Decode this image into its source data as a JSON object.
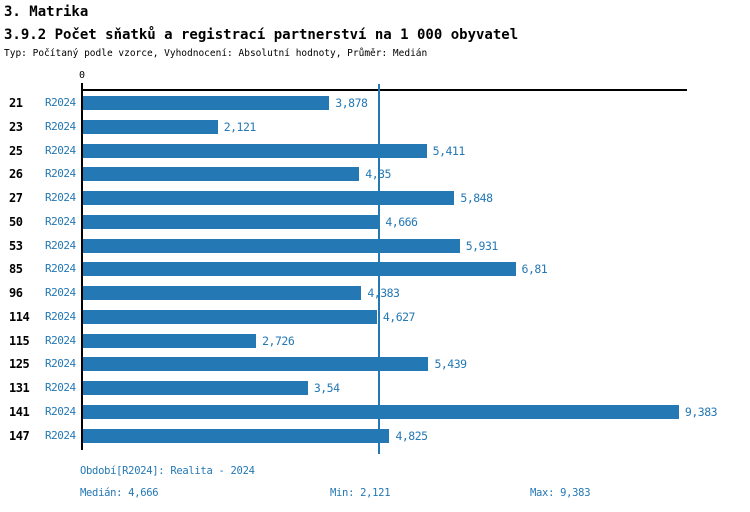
{
  "header": {
    "section": "3. Matrika",
    "title": "3.9.2 Počet sňatků a registrací partnerství na 1 000 obyvatel",
    "subtitle": "Typ: Počítaný podle vzorce, Vyhodnocení: Absolutní hodnoty, Průměr: Medián"
  },
  "chart_data": {
    "type": "bar",
    "orientation": "horizontal",
    "axis_zero_label": "0",
    "series_name": "R2024",
    "categories": [
      "21",
      "23",
      "25",
      "26",
      "27",
      "50",
      "53",
      "85",
      "96",
      "114",
      "115",
      "125",
      "131",
      "141",
      "147"
    ],
    "values": [
      3.878,
      2.121,
      5.411,
      4.35,
      5.848,
      4.666,
      5.931,
      6.81,
      4.383,
      4.627,
      2.726,
      5.439,
      3.54,
      9.383,
      4.825
    ],
    "value_labels": [
      "3,878",
      "2,121",
      "5,411",
      "4,35",
      "5,848",
      "4,666",
      "5,931",
      "6,81",
      "4,383",
      "4,627",
      "2,726",
      "5,439",
      "3,54",
      "9,383",
      "4,825"
    ],
    "median_value": 4.666,
    "xlim": [
      0,
      9.51
    ],
    "grid": "median-line-only",
    "legend_position": "none",
    "bar_color": "#2478b4",
    "label_color": "#2478b4",
    "median_line_color": "#2478b4"
  },
  "footer": {
    "period": "Období[R2024]: Realita - 2024",
    "median": "Medián: 4,666",
    "min": "Min: 2,121",
    "max": "Max: 9,383",
    "text_color": "#2478b4"
  }
}
